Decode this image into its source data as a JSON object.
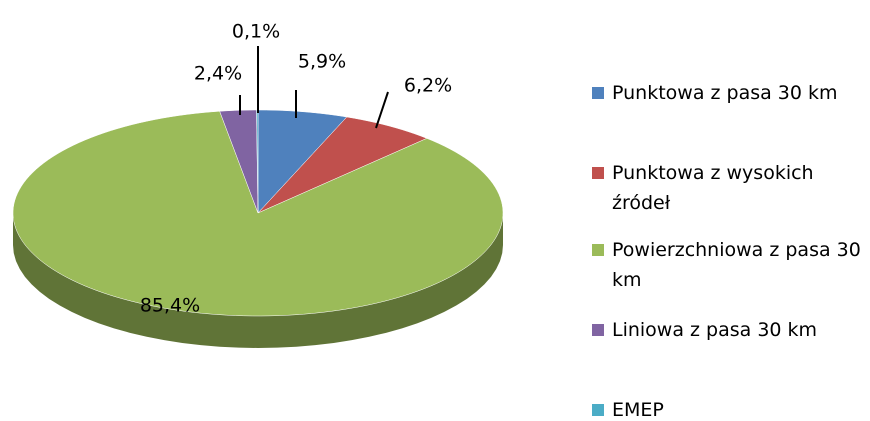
{
  "chart_data": {
    "type": "pie",
    "categories": [
      "Punktowa z pasa 30 km",
      "Punktowa z wysokich źródeł",
      "Powierzchniowa z pasa 30 km",
      "Liniowa z pasa 30 km",
      "EMEP"
    ],
    "values": [
      5.9,
      6.2,
      85.4,
      2.4,
      0.1
    ],
    "value_labels": [
      "5,9%",
      "6,2%",
      "85,4%",
      "2,4%",
      "0,1%"
    ],
    "colors": [
      "#4f81bd",
      "#c0504d",
      "#9bbb59",
      "#8064a2",
      "#4bacc6"
    ],
    "legend": "right"
  }
}
